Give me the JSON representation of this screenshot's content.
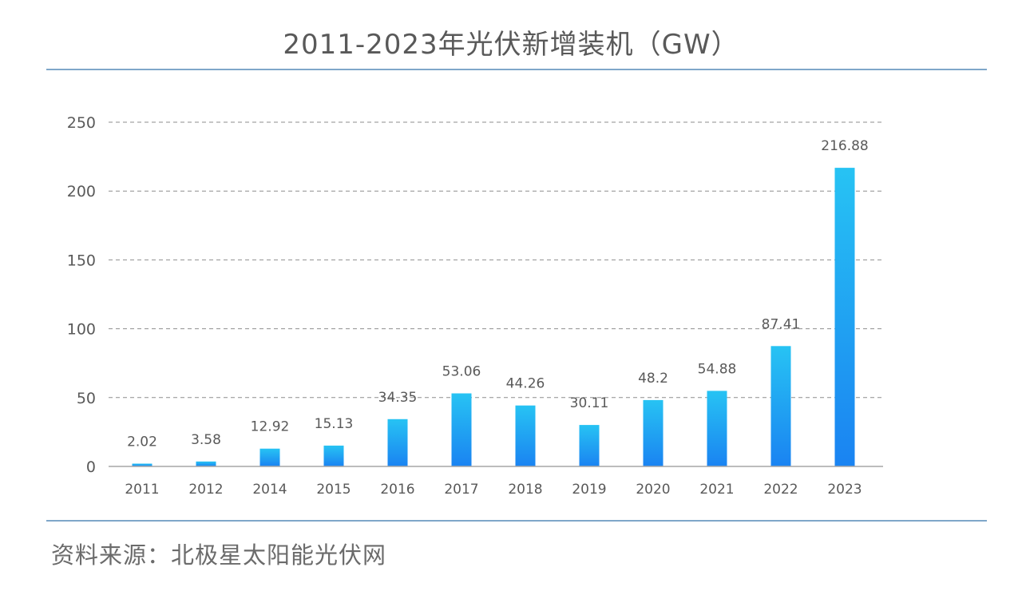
{
  "header": {
    "title": "2011-2023年光伏新增装机（GW）"
  },
  "footer": {
    "source": "资料来源：北极星太阳能光伏网"
  },
  "colors": {
    "bar_top": "#27c3f3",
    "bar_bottom": "#1a83f2",
    "grid": "#8e8e8e",
    "axis": "#a6a6a6",
    "rule": "#7fa7c9",
    "text": "#595959"
  },
  "chart_data": {
    "type": "bar",
    "title": "2011-2023年光伏新增装机（GW）",
    "xlabel": "",
    "ylabel": "",
    "ylim": [
      0,
      250
    ],
    "yticks": [
      0,
      50,
      100,
      150,
      200,
      250
    ],
    "grid": true,
    "legend": "none",
    "categories": [
      "2011",
      "2012",
      "2014",
      "2015",
      "2016",
      "2017",
      "2018",
      "2019",
      "2020",
      "2021",
      "2022",
      "2023"
    ],
    "values": [
      2.02,
      3.58,
      12.92,
      15.13,
      34.35,
      53.06,
      44.26,
      30.11,
      48.2,
      54.88,
      87.41,
      216.88
    ],
    "data_labels": [
      "2.02",
      "3.58",
      "12.92",
      "15.13",
      "34.35",
      "53.06",
      "44.26",
      "30.11",
      "48.2",
      "54.88",
      "87.41",
      "216.88"
    ]
  }
}
